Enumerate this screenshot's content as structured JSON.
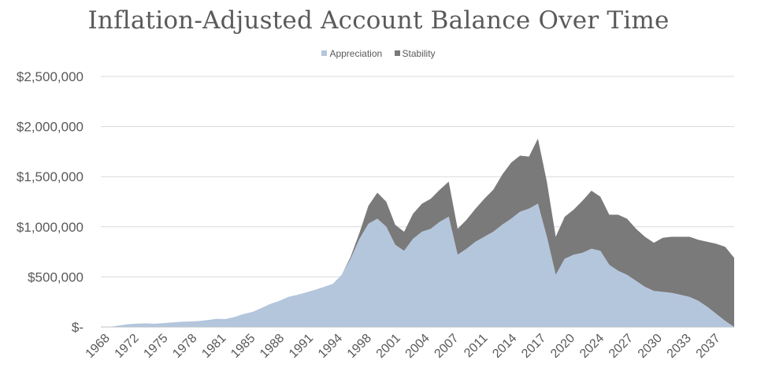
{
  "chart_data": {
    "type": "area",
    "title": "Inflation-Adjusted Account Balance Over Time",
    "stacked": true,
    "legend_position": "top",
    "grid": true,
    "ylim": [
      0,
      2500000
    ],
    "y_ticks": [
      0,
      500000,
      1000000,
      1500000,
      2000000,
      2500000
    ],
    "y_tick_labels": [
      "$-",
      "$500,000",
      "$1,000,000",
      "$1,500,000",
      "$2,000,000",
      "$2,500,000"
    ],
    "x_tick_labels": [
      "1968",
      "1972",
      "1975",
      "1978",
      "1981",
      "1985",
      "1988",
      "1991",
      "1994",
      "1998",
      "2001",
      "2004",
      "2007",
      "2011",
      "2014",
      "2017",
      "2020",
      "2024",
      "2027",
      "2030",
      "2033",
      "2037"
    ],
    "x": [
      1968,
      1969,
      1970,
      1971,
      1972,
      1973,
      1974,
      1975,
      1976,
      1977,
      1978,
      1979,
      1980,
      1981,
      1982,
      1983,
      1984,
      1985,
      1986,
      1987,
      1988,
      1989,
      1990,
      1991,
      1992,
      1993,
      1994,
      1995,
      1996,
      1997,
      1998,
      1999,
      2000,
      2001,
      2002,
      2003,
      2004,
      2005,
      2006,
      2007,
      2008,
      2009,
      2010,
      2011,
      2012,
      2013,
      2014,
      2015,
      2016,
      2017,
      2018,
      2019,
      2020,
      2021,
      2022,
      2023,
      2024,
      2025,
      2026,
      2027,
      2028,
      2029,
      2030,
      2031,
      2032,
      2033,
      2034,
      2035,
      2036,
      2037,
      2038,
      2039
    ],
    "series": [
      {
        "name": "Appreciation",
        "color": "#b4c6dc",
        "values": [
          0,
          0,
          15000,
          28000,
          33000,
          36000,
          32000,
          38000,
          45000,
          52000,
          55000,
          60000,
          70000,
          82000,
          80000,
          100000,
          130000,
          150000,
          190000,
          230000,
          260000,
          300000,
          320000,
          345000,
          370000,
          400000,
          430000,
          520000,
          680000,
          880000,
          1030000,
          1080000,
          1000000,
          820000,
          760000,
          880000,
          950000,
          980000,
          1050000,
          1100000,
          720000,
          780000,
          850000,
          900000,
          950000,
          1020000,
          1080000,
          1150000,
          1180000,
          1230000,
          900000,
          520000,
          680000,
          720000,
          740000,
          780000,
          760000,
          620000,
          560000,
          520000,
          460000,
          400000,
          360000,
          350000,
          340000,
          320000,
          300000,
          260000,
          200000,
          130000,
          60000,
          0
        ]
      },
      {
        "name": "Stability",
        "color": "#7a7a7a",
        "values": [
          0,
          0,
          0,
          0,
          0,
          0,
          0,
          0,
          0,
          0,
          0,
          0,
          0,
          0,
          0,
          0,
          0,
          0,
          0,
          0,
          0,
          0,
          0,
          0,
          0,
          0,
          0,
          0,
          20000,
          60000,
          180000,
          260000,
          250000,
          200000,
          190000,
          250000,
          280000,
          300000,
          320000,
          350000,
          260000,
          290000,
          330000,
          380000,
          420000,
          500000,
          560000,
          560000,
          520000,
          650000,
          550000,
          380000,
          420000,
          450000,
          520000,
          580000,
          540000,
          500000,
          560000,
          560000,
          520000,
          500000,
          480000,
          540000,
          560000,
          580000,
          600000,
          610000,
          650000,
          700000,
          740000,
          690000
        ]
      }
    ]
  }
}
